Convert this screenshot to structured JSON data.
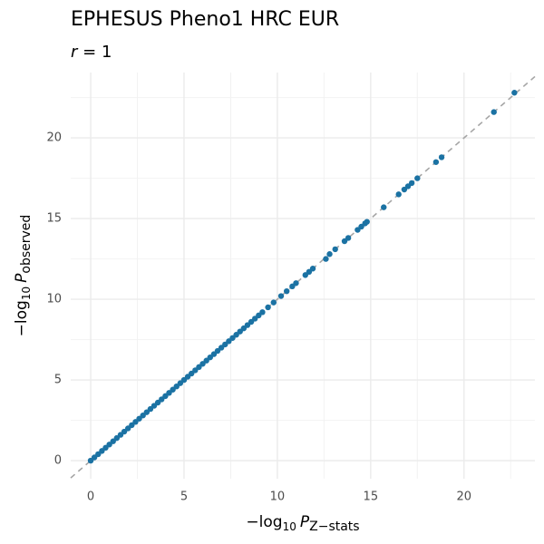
{
  "chart_data": {
    "type": "scatter",
    "title": "EPHESUS Pheno1 HRC EUR",
    "subtitle_parts": [
      "r",
      "= 1"
    ],
    "xlabel_parts": [
      "−log",
      "10",
      "P",
      "Z−stats"
    ],
    "ylabel_parts": [
      "−log",
      "10",
      "P",
      "observed"
    ],
    "xlim": [
      -1.07,
      23.8
    ],
    "ylim": [
      -1.12,
      24.05
    ],
    "xticks": [
      0,
      5,
      10,
      15,
      20
    ],
    "yticks": [
      0,
      5,
      10,
      15,
      20
    ],
    "grid": true,
    "identity_line": true,
    "series": [
      {
        "name": "points",
        "color": "#1b72a3",
        "x": [
          0,
          0.2,
          0.4,
          0.6,
          0.8,
          1.0,
          1.2,
          1.4,
          1.6,
          1.8,
          2.0,
          2.2,
          2.4,
          2.6,
          2.8,
          3.0,
          3.2,
          3.4,
          3.6,
          3.8,
          4.0,
          4.2,
          4.4,
          4.6,
          4.8,
          5.0,
          5.2,
          5.4,
          5.6,
          5.8,
          6.0,
          6.2,
          6.4,
          6.6,
          6.8,
          7.0,
          7.2,
          7.4,
          7.6,
          7.8,
          8.0,
          8.2,
          8.4,
          8.6,
          8.8,
          9.0,
          9.2,
          9.5,
          9.8,
          10.2,
          10.5,
          10.8,
          11.0,
          11.5,
          11.7,
          11.9,
          12.6,
          12.8,
          13.1,
          13.6,
          13.8,
          14.3,
          14.5,
          14.7,
          14.8,
          15.7,
          16.5,
          16.8,
          17.0,
          17.2,
          17.5,
          18.5,
          18.8,
          21.6,
          22.7
        ],
        "y": [
          0,
          0.2,
          0.4,
          0.6,
          0.8,
          1.0,
          1.2,
          1.4,
          1.6,
          1.8,
          2.0,
          2.2,
          2.4,
          2.6,
          2.8,
          3.0,
          3.2,
          3.4,
          3.6,
          3.8,
          4.0,
          4.2,
          4.4,
          4.6,
          4.8,
          5.0,
          5.2,
          5.4,
          5.6,
          5.8,
          6.0,
          6.2,
          6.4,
          6.6,
          6.8,
          7.0,
          7.2,
          7.4,
          7.6,
          7.8,
          8.0,
          8.2,
          8.4,
          8.6,
          8.8,
          9.0,
          9.2,
          9.5,
          9.8,
          10.2,
          10.5,
          10.8,
          11.0,
          11.5,
          11.7,
          11.9,
          12.5,
          12.8,
          13.1,
          13.6,
          13.8,
          14.3,
          14.5,
          14.7,
          14.8,
          15.7,
          16.5,
          16.8,
          17.0,
          17.2,
          17.5,
          18.5,
          18.8,
          21.6,
          22.8
        ]
      }
    ]
  }
}
